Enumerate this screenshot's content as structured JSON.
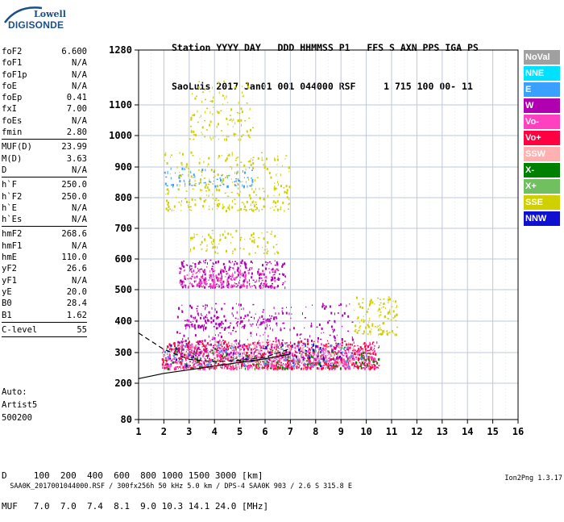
{
  "logo": {
    "top": "Lowell",
    "bottom": "DIGISONDE"
  },
  "header": {
    "line1": "Station YYYY DAY   DDD HHMMSS P1   FFS S AXN PPS IGA PS",
    "line2": "SaoLuis 2017 Jan01 001 044000 RSF     1 715 100 00- 11"
  },
  "params_groups": [
    [
      [
        "foF2",
        "6.600"
      ],
      [
        "foF1",
        "N/A"
      ],
      [
        "foF1p",
        "N/A"
      ],
      [
        "foE",
        "N/A"
      ],
      [
        "foEp",
        "0.41"
      ],
      [
        "fxI",
        "7.00"
      ],
      [
        "foEs",
        "N/A"
      ],
      [
        "fmin",
        "2.80"
      ]
    ],
    [
      [
        "MUF(D)",
        "23.99"
      ],
      [
        "M(D)",
        "3.63"
      ],
      [
        "D",
        "N/A"
      ]
    ],
    [
      [
        "h`F",
        "250.0"
      ],
      [
        "h`F2",
        "250.0"
      ],
      [
        "h`E",
        "N/A"
      ],
      [
        "h`Es",
        "N/A"
      ]
    ],
    [
      [
        "hmF2",
        "268.6"
      ],
      [
        "hmF1",
        "N/A"
      ],
      [
        "hmE",
        "110.0"
      ],
      [
        "yF2",
        "26.6"
      ],
      [
        "yF1",
        "N/A"
      ],
      [
        "yE",
        "20.0"
      ],
      [
        "B0",
        "28.4"
      ],
      [
        "B1",
        "1.62"
      ]
    ],
    [
      [
        "C-level",
        "55"
      ]
    ]
  ],
  "misc": {
    "auto": "Auto:",
    "artist": "Artist5",
    "code": "500200"
  },
  "footer": {
    "d_line": "D     100  200  400  600  800 1000 1500 3000 [km]",
    "muf_line": "MUF   7.0  7.0  7.4  8.1  9.0 10.3 14.1 24.0 [MHz]"
  },
  "bottom": {
    "left": "SAA0K_2017001044000.RSF / 300fx256h 50 kHz 5.0 km / DPS-4 SAA0K 903 / 2.6 S 315.8 E",
    "right": "Ion2Png 1.3.17"
  },
  "legend": [
    {
      "label": "NoVal",
      "color": "#a0a0a0"
    },
    {
      "label": "NNE",
      "color": "#00e0ff"
    },
    {
      "label": "E",
      "color": "#3aa0ff"
    },
    {
      "label": "W",
      "color": "#b000b0"
    },
    {
      "label": "Vo-",
      "color": "#ff40c0"
    },
    {
      "label": "Vo+",
      "color": "#ff0040"
    },
    {
      "label": "SSW",
      "color": "#ffb0b0"
    },
    {
      "label": "X-",
      "color": "#008000"
    },
    {
      "label": "X+",
      "color": "#70c060"
    },
    {
      "label": "SSE",
      "color": "#d0d000"
    },
    {
      "label": "NNW",
      "color": "#1010d0"
    }
  ],
  "chart_data": {
    "type": "scatter",
    "x_ticks": [
      "1",
      "2",
      "3",
      "4",
      "5",
      "6",
      "7",
      "8",
      "9",
      "10",
      "11",
      "12",
      "13",
      "14",
      "15",
      "16"
    ],
    "y_ticks": [
      "80",
      "200",
      "300",
      "400",
      "500",
      "600",
      "700",
      "800",
      "900",
      "1000",
      "1100",
      "1280"
    ],
    "xlim": [
      1,
      16
    ],
    "grid": true,
    "y_axis_note": "non-uniform height axis; tick labels shown as printed",
    "traces": [
      {
        "color": "#ff0040",
        "fmin": 1.9,
        "fmax": 10.5,
        "hmin": 250,
        "hmax": 340,
        "n": 900
      },
      {
        "color": "#ff40c0",
        "fmin": 1.9,
        "fmax": 10.5,
        "hmin": 250,
        "hmax": 330,
        "n": 500
      },
      {
        "color": "#b000b0",
        "fmin": 2.5,
        "fmax": 9.5,
        "hmin": 280,
        "hmax": 460,
        "n": 350
      },
      {
        "color": "#008000",
        "fmin": 2.0,
        "fmax": 10.5,
        "hmin": 250,
        "hmax": 320,
        "n": 160
      },
      {
        "color": "#3aa0ff",
        "fmin": 2.0,
        "fmax": 10.0,
        "hmin": 260,
        "hmax": 330,
        "n": 120
      },
      {
        "color": "#1010d0",
        "fmin": 2.0,
        "fmax": 9.0,
        "hmin": 260,
        "hmax": 330,
        "n": 60
      },
      {
        "color": "#ffb0b0",
        "fmin": 4.0,
        "fmax": 9.5,
        "hmin": 270,
        "hmax": 340,
        "n": 120
      },
      {
        "color": "#d0d000",
        "fmin": 9.5,
        "fmax": 11.2,
        "hmin": 360,
        "hmax": 480,
        "n": 120
      },
      {
        "color": "#b000b0",
        "fmin": 2.6,
        "fmax": 6.8,
        "hmin": 510,
        "hmax": 600,
        "n": 320
      },
      {
        "color": "#ff40c0",
        "fmin": 2.6,
        "fmax": 6.5,
        "hmin": 510,
        "hmax": 570,
        "n": 150
      },
      {
        "color": "#d0d000",
        "fmin": 3.0,
        "fmax": 6.5,
        "hmin": 620,
        "hmax": 700,
        "n": 90
      },
      {
        "color": "#d0d000",
        "fmin": 2.0,
        "fmax": 7.0,
        "hmin": 760,
        "hmax": 950,
        "n": 300
      },
      {
        "color": "#3aa0ff",
        "fmin": 2.0,
        "fmax": 5.5,
        "hmin": 840,
        "hmax": 900,
        "n": 80
      },
      {
        "color": "#d0d000",
        "fmin": 3.0,
        "fmax": 5.5,
        "hmin": 990,
        "hmax": 1180,
        "n": 120
      },
      {
        "color": "#b000b0",
        "fmin": 2.8,
        "fmax": 6.5,
        "hmin": 380,
        "hmax": 420,
        "n": 120
      }
    ],
    "curves": [
      {
        "style": "solid",
        "points": [
          [
            1,
            215
          ],
          [
            2,
            232
          ],
          [
            3,
            244
          ],
          [
            4,
            256
          ],
          [
            5,
            268
          ],
          [
            6,
            280
          ],
          [
            7,
            295
          ]
        ]
      },
      {
        "style": "dashed",
        "points": [
          [
            1,
            362
          ],
          [
            2,
            310
          ],
          [
            3,
            278
          ],
          [
            4,
            270
          ],
          [
            5,
            275
          ],
          [
            6,
            285
          ],
          [
            6.9,
            310
          ]
        ]
      }
    ]
  }
}
